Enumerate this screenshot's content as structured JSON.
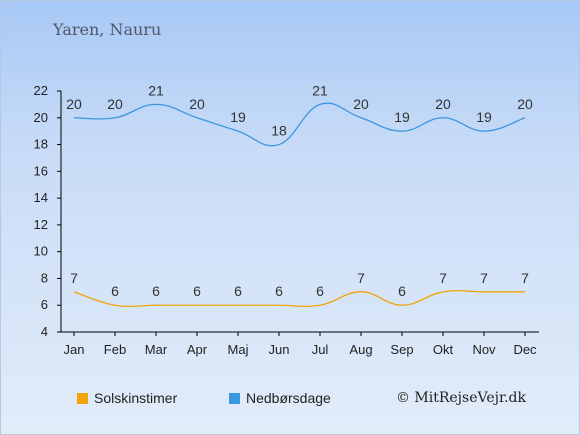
{
  "page": {
    "title": "Yaren, Nauru",
    "copyright": "© MitRejseVejr.dk"
  },
  "colors": {
    "sun": "#f0a30a",
    "rain": "#3b96e0",
    "axis": "#000000",
    "label_sun": "#333333",
    "label_rain": "#333333"
  },
  "chart_data": {
    "type": "line",
    "categories": [
      "Jan",
      "Feb",
      "Mar",
      "Apr",
      "Maj",
      "Jun",
      "Jul",
      "Aug",
      "Sep",
      "Okt",
      "Nov",
      "Dec"
    ],
    "series": [
      {
        "name": "Solskinstimer",
        "key": "sun",
        "values": [
          7,
          6,
          6,
          6,
          6,
          6,
          6,
          7,
          6,
          7,
          7,
          7
        ]
      },
      {
        "name": "Nedbørsdage",
        "key": "rain",
        "values": [
          20,
          20,
          21,
          20,
          19,
          18,
          21,
          20,
          19,
          20,
          19,
          20
        ]
      }
    ],
    "yticks": [
      4,
      6,
      8,
      10,
      12,
      14,
      16,
      18,
      20,
      22
    ],
    "ylim": [
      4,
      22
    ],
    "grid": false,
    "legend": "bottom-left",
    "data_labels": true
  }
}
